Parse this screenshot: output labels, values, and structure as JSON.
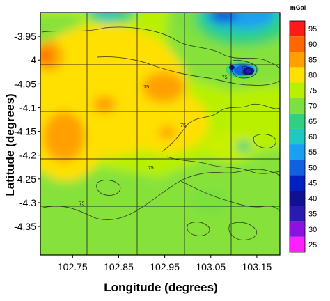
{
  "chart_data": {
    "type": "heatmap",
    "title": "",
    "xlabel": "Longitude (degrees)",
    "ylabel": "Latitude (degrees)",
    "xlim": [
      102.68,
      103.2
    ],
    "ylim": [
      -4.41,
      -3.9
    ],
    "x_ticks": [
      {
        "value": 102.75,
        "label": "102.75"
      },
      {
        "value": 102.85,
        "label": "102.85"
      },
      {
        "value": 102.95,
        "label": "102.95"
      },
      {
        "value": 103.05,
        "label": "103.05"
      },
      {
        "value": 103.15,
        "label": "103.15"
      }
    ],
    "y_ticks": [
      {
        "value": -3.95,
        "label": "-3.95"
      },
      {
        "value": -4.0,
        "label": "-4"
      },
      {
        "value": -4.05,
        "label": "-4.05"
      },
      {
        "value": -4.1,
        "label": "-4.1"
      },
      {
        "value": -4.15,
        "label": "-4.15"
      },
      {
        "value": -4.2,
        "label": "-4.2"
      },
      {
        "value": -4.25,
        "label": "-4.25"
      },
      {
        "value": -4.3,
        "label": "-4.3"
      },
      {
        "value": -4.35,
        "label": "-4.35"
      }
    ],
    "grid": true,
    "colorbar": {
      "unit": "mGal",
      "levels": [
        {
          "label": "95",
          "color": "#ff1a1a"
        },
        {
          "label": "90",
          "color": "#ff6600"
        },
        {
          "label": "85",
          "color": "#ffa000"
        },
        {
          "label": "80",
          "color": "#ffe000"
        },
        {
          "label": "75",
          "color": "#b8f000"
        },
        {
          "label": "70",
          "color": "#7be040"
        },
        {
          "label": "65",
          "color": "#30d080"
        },
        {
          "label": "60",
          "color": "#20c8c0"
        },
        {
          "label": "55",
          "color": "#1aa0f0"
        },
        {
          "label": "50",
          "color": "#1060e0"
        },
        {
          "label": "45",
          "color": "#0020c0"
        },
        {
          "label": "40",
          "color": "#101090"
        },
        {
          "label": "35",
          "color": "#2a1ab0"
        },
        {
          "label": "30",
          "color": "#9010e0"
        },
        {
          "label": "25",
          "color": "#ff20ff"
        }
      ]
    },
    "contour_labels": [
      {
        "lon": 102.91,
        "lat": -4.06,
        "label": "75"
      },
      {
        "lon": 103.08,
        "lat": -4.04,
        "label": "75"
      },
      {
        "lon": 102.99,
        "lat": -4.14,
        "label": "75"
      },
      {
        "lon": 102.92,
        "lat": -4.23,
        "label": "75"
      },
      {
        "lon": 102.77,
        "lat": -4.305,
        "label": "75"
      }
    ],
    "anomalies": [
      {
        "kind": "high",
        "lon": 102.695,
        "lat": -3.985,
        "value": 90
      },
      {
        "kind": "high",
        "lon": 102.77,
        "lat": -4.17,
        "value": 85
      },
      {
        "kind": "high",
        "lon": 102.945,
        "lat": -4.045,
        "value": 85
      },
      {
        "kind": "low",
        "lon": 103.12,
        "lat": -4.0,
        "value": 35
      },
      {
        "kind": "low",
        "lon": 103.07,
        "lat": -3.905,
        "value": 55
      },
      {
        "kind": "low",
        "lon": 103.11,
        "lat": -4.17,
        "value": 70
      },
      {
        "kind": "low",
        "lon": 102.79,
        "lat": -3.92,
        "value": 70
      }
    ]
  }
}
